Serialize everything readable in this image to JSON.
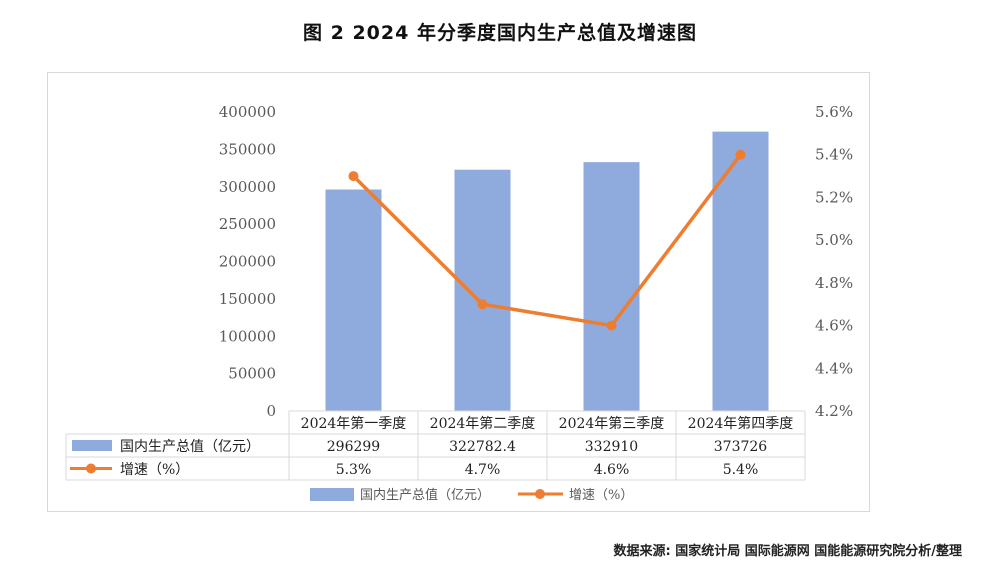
{
  "title": "图  2 2024 年分季度国内生产总值及增速图",
  "source_note": "数据来源:  国家统计局 国际能源网 国能能源研究院分析/整理",
  "colors": {
    "bar": "#8faadc",
    "line": "#ed7d31",
    "grid": "#d9d9d9",
    "axis_text": "#595959"
  },
  "chart_data": {
    "type": "bar",
    "categories": [
      "2024年第一季度",
      "2024年第二季度",
      "2024年第三季度",
      "2024年第四季度"
    ],
    "series": [
      {
        "name": "国内生产总值（亿元）",
        "type": "bar",
        "axis": "left",
        "values": [
          296299,
          322782.4,
          332910,
          373726
        ],
        "labels": [
          "296299",
          "322782.4",
          "332910",
          "373726"
        ]
      },
      {
        "name": "增速（%）",
        "type": "line",
        "axis": "right",
        "values": [
          5.3,
          4.7,
          4.6,
          5.4
        ],
        "labels": [
          "5.3%",
          "4.7%",
          "4.6%",
          "5.4%"
        ]
      }
    ],
    "y_left": {
      "range": [
        0,
        400000
      ],
      "ticks": [
        "0",
        "50000",
        "100000",
        "150000",
        "200000",
        "250000",
        "300000",
        "350000",
        "400000"
      ]
    },
    "y_right": {
      "range": [
        4.2,
        5.6
      ],
      "ticks": [
        "4.2%",
        "4.4%",
        "4.6%",
        "4.8%",
        "5.0%",
        "5.2%",
        "5.4%",
        "5.6%"
      ]
    },
    "data_table": true,
    "legend_position": "bottom",
    "grid": false
  }
}
